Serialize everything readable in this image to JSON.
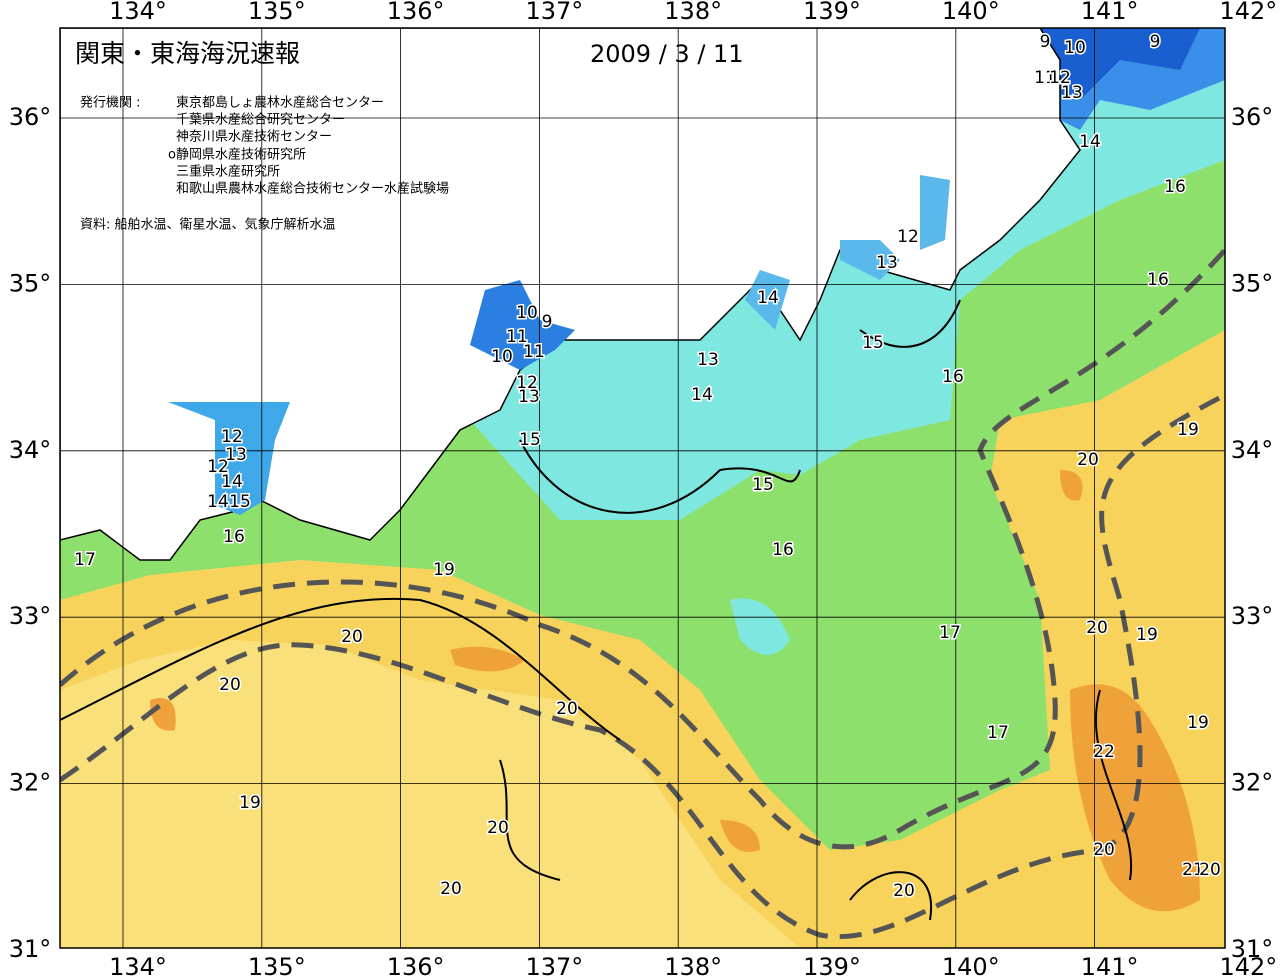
{
  "header": {
    "title": "関東・東海海況速報",
    "date": "2009 / 3 / 11",
    "issuer_label": "発行機関 :",
    "issuers": [
      "東京都島しょ農林水産総合センター",
      "千葉県水産総合研究センター",
      "神奈川県水産技術センター",
      "o静岡県水産技術研究所",
      "三重県水産研究所",
      "和歌山県農林水産総合技術センター水産試験場"
    ],
    "source": "資料: 船舶水温、衛星水温、気象庁解析水温"
  },
  "map": {
    "lon_ticks": [
      {
        "value": 134,
        "label": "134°"
      },
      {
        "value": 135,
        "label": "135°"
      },
      {
        "value": 136,
        "label": "136°"
      },
      {
        "value": 137,
        "label": "137°"
      },
      {
        "value": 138,
        "label": "138°"
      },
      {
        "value": 139,
        "label": "139°"
      },
      {
        "value": 140,
        "label": "140°"
      },
      {
        "value": 141,
        "label": "141°"
      },
      {
        "value": 142,
        "label": "142°"
      }
    ],
    "lat_ticks": [
      {
        "value": 31,
        "label": "31°"
      },
      {
        "value": 32,
        "label": "32°"
      },
      {
        "value": 33,
        "label": "33°"
      },
      {
        "value": 34,
        "label": "34°"
      },
      {
        "value": 35,
        "label": "35°"
      },
      {
        "value": 36,
        "label": "36°"
      }
    ],
    "contour_labels": [
      "9",
      "10",
      "9",
      "11",
      "12",
      "13",
      "14",
      "16",
      "12",
      "13",
      "16",
      "14",
      "10",
      "9",
      "11",
      "15",
      "10",
      "11",
      "13",
      "16",
      "12",
      "13",
      "14",
      "19",
      "12",
      "15",
      "13",
      "20",
      "12",
      "14",
      "15",
      "14",
      "15",
      "16",
      "16",
      "17",
      "19",
      "20",
      "17",
      "19",
      "20",
      "20",
      "20",
      "19",
      "17",
      "22",
      "19",
      "20",
      "20",
      "21",
      "20",
      "20",
      "20"
    ]
  }
}
